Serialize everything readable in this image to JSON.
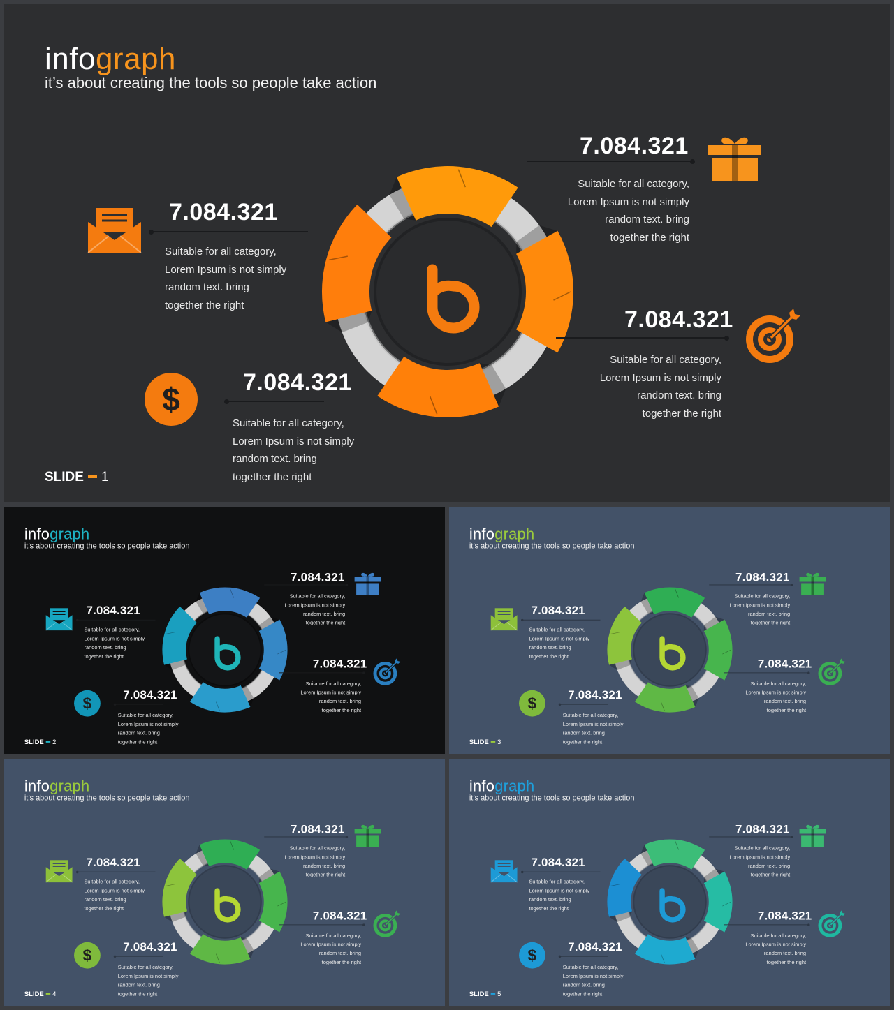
{
  "title_prefix": "info",
  "title_suffix": "graph",
  "subtitle": "it’s about creating the tools so people take action",
  "slide_label": "SLIDE",
  "value": "7.084.321",
  "desc": [
    "Suitable for all category,",
    "Lorem Ipsum is not simply",
    "random text. bring",
    "together the right"
  ],
  "icons": [
    "mail-icon",
    "dollar-icon",
    "gift-icon",
    "target-icon"
  ],
  "logo_glyph": "b",
  "slides": [
    {
      "number": "1",
      "bg": "#2d2e30",
      "hub": "#2a2b2d",
      "accent": "#f7941d",
      "accent_dark": "#e86e0a",
      "c_mail": "#f47b0f",
      "c_dollar": "#f47b0f",
      "c_gift": "#f7941d",
      "c_target": "#f47b0f",
      "c_logo": "#f47b0f",
      "segs": [
        "#ff7e0c",
        "#ff9a0a",
        "#ff8a0c",
        "#ff8009"
      ]
    },
    {
      "number": "2",
      "bg": "#101112",
      "hub": "#141517",
      "accent": "#1eb3c4",
      "accent_dark": "#1a9aa6",
      "c_mail": "#17a6c0",
      "c_dollar": "#1296b8",
      "c_gift": "#3e7fc5",
      "c_target": "#2a7fc0",
      "c_logo": "#1fb5b8",
      "segs": [
        "#1a9fbf",
        "#3d7fc4",
        "#3688c6",
        "#2a9ccc"
      ]
    },
    {
      "number": "3",
      "bg": "#435268",
      "hub": "#3a4759",
      "accent": "#9bcb3c",
      "accent_dark": "#7fb032",
      "c_mail": "#8dc03a",
      "c_dollar": "#7fba3c",
      "c_gift": "#3aaf52",
      "c_target": "#3aaf52",
      "c_logo": "#b5d733",
      "segs": [
        "#8dc43c",
        "#2fae54",
        "#47b54d",
        "#5fb845"
      ]
    },
    {
      "number": "4",
      "bg": "#435268",
      "hub": "#3a4759",
      "accent": "#9bcb3c",
      "accent_dark": "#7fb032",
      "c_mail": "#8dc03a",
      "c_dollar": "#7fba3c",
      "c_gift": "#3aaf52",
      "c_target": "#3aaf52",
      "c_logo": "#b5d733",
      "segs": [
        "#8dc43c",
        "#2fae54",
        "#47b54d",
        "#5fb845"
      ]
    },
    {
      "number": "5",
      "bg": "#435268",
      "hub": "#3a4759",
      "accent": "#1ea0dc",
      "accent_dark": "#1a8fc5",
      "c_mail": "#1d9ad6",
      "c_dollar": "#1d9ad6",
      "c_gift": "#3bb871",
      "c_target": "#1fb8a0",
      "c_logo": "#1d9ad6",
      "segs": [
        "#1c8fd3",
        "#3cbd78",
        "#26bca4",
        "#1eaad0"
      ]
    }
  ]
}
